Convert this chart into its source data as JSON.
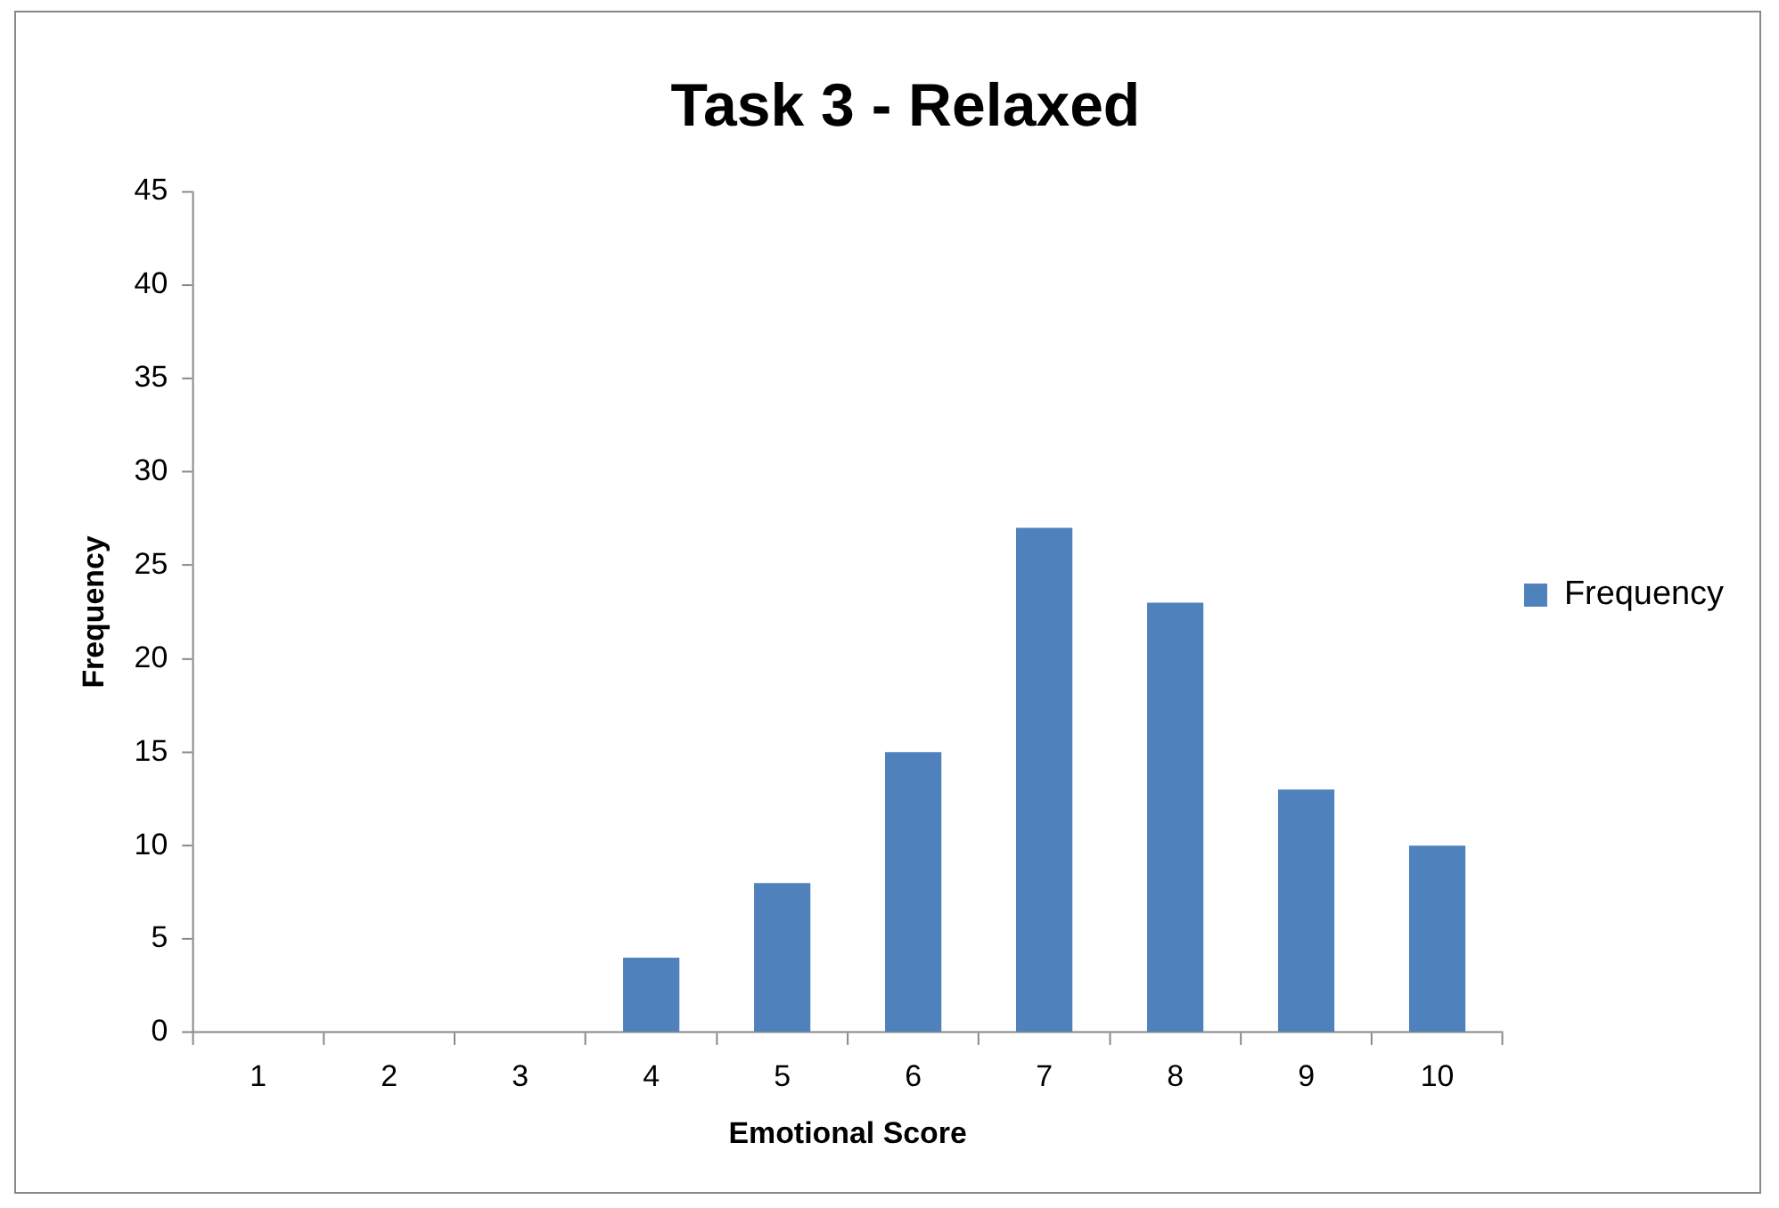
{
  "chart_data": {
    "type": "bar",
    "title": "Task 3 - Relaxed",
    "xlabel": "Emotional Score",
    "ylabel": "Frequency",
    "categories": [
      "1",
      "2",
      "3",
      "4",
      "5",
      "6",
      "7",
      "8",
      "9",
      "10"
    ],
    "series": [
      {
        "name": "Frequency",
        "color": "#4f81bd",
        "values": [
          0,
          0,
          0,
          4,
          8,
          15,
          27,
          23,
          13,
          10
        ]
      }
    ],
    "ylim": [
      0,
      45
    ],
    "yticks": [
      0,
      5,
      10,
      15,
      20,
      25,
      30,
      35,
      40,
      45
    ],
    "grid": false,
    "legend": "right"
  }
}
